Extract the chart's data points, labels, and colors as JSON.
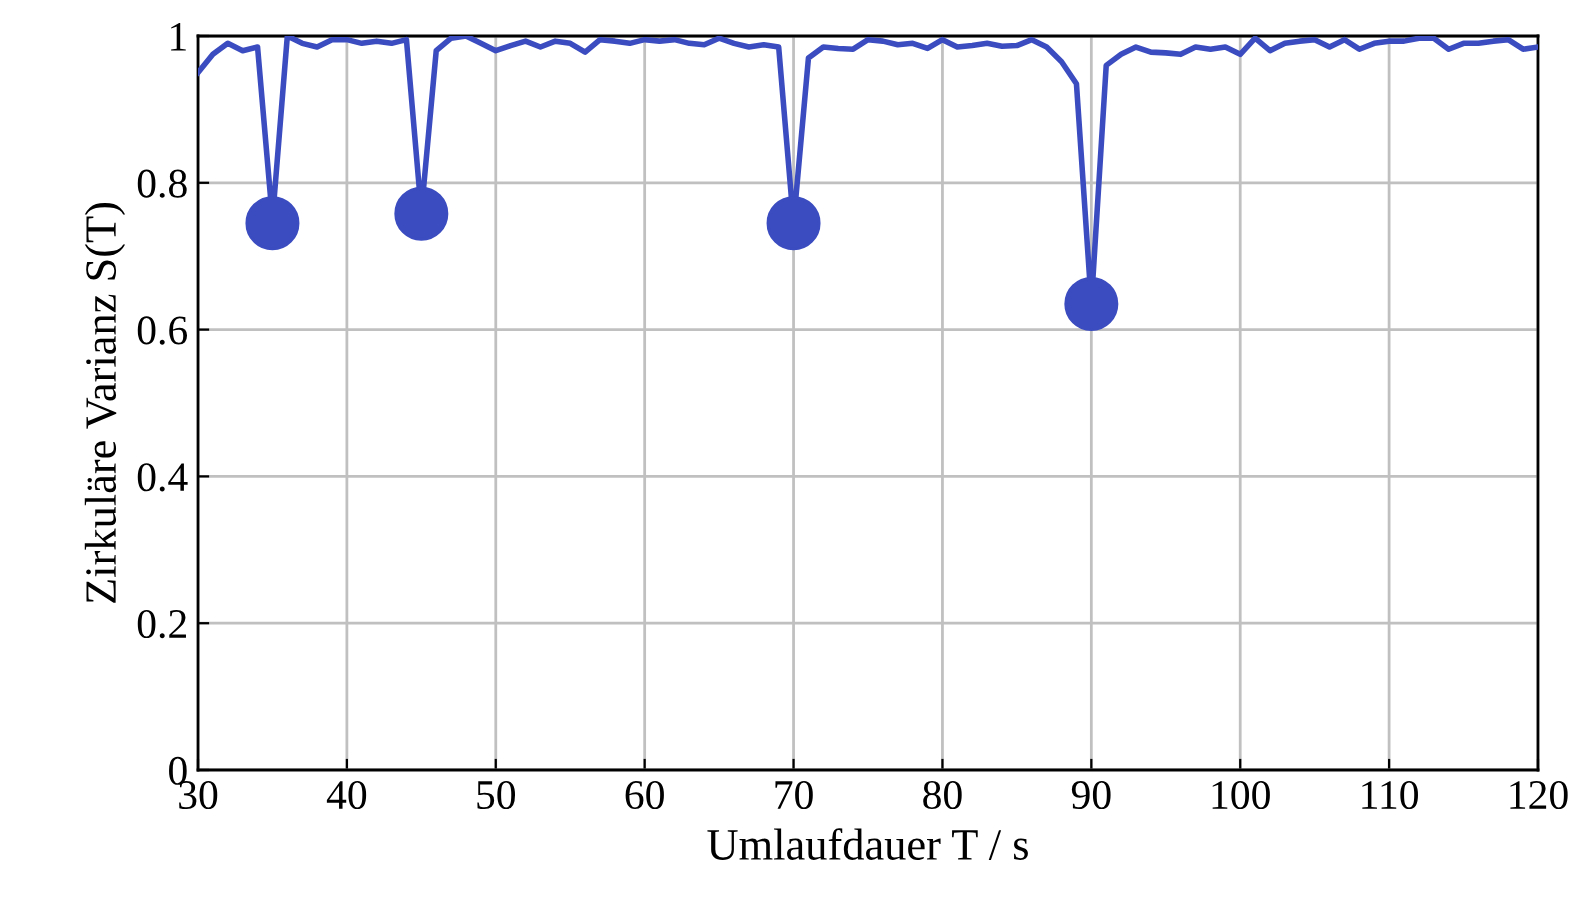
{
  "chart_data": {
    "type": "line",
    "xlabel": "Umlaufdauer T / s",
    "ylabel": "Zirkuläre Varianz S(T)",
    "xlim": [
      30,
      120
    ],
    "xticks": [
      30,
      40,
      50,
      60,
      70,
      80,
      90,
      100,
      110,
      120
    ],
    "ylim": [
      0,
      1
    ],
    "yticks": [
      0,
      0.2,
      0.4,
      0.6,
      0.8,
      1
    ],
    "grid": true,
    "legend": false,
    "series": [
      {
        "color": "#3b4cc0",
        "marker": "none",
        "line_style": "solid",
        "x": [
          30,
          31,
          32,
          33,
          34,
          35,
          36,
          37,
          38,
          39,
          40,
          41,
          42,
          43,
          44,
          45,
          46,
          47,
          48,
          49,
          50,
          51,
          52,
          53,
          54,
          55,
          56,
          57,
          58,
          59,
          60,
          61,
          62,
          63,
          64,
          65,
          66,
          67,
          68,
          69,
          70,
          71,
          72,
          73,
          74,
          75,
          76,
          77,
          78,
          79,
          80,
          81,
          82,
          83,
          84,
          85,
          86,
          87,
          88,
          89,
          90,
          91,
          92,
          93,
          94,
          95,
          96,
          97,
          98,
          99,
          100,
          101,
          102,
          103,
          104,
          105,
          106,
          107,
          108,
          109,
          110,
          111,
          112,
          113,
          114,
          115,
          116,
          117,
          118,
          119,
          120
        ],
        "values": [
          0.95,
          0.975,
          0.99,
          0.98,
          0.985,
          0.75,
          1.0,
          0.99,
          0.985,
          0.995,
          0.995,
          0.99,
          0.993,
          0.99,
          0.995,
          0.76,
          0.98,
          0.997,
          1.0,
          0.99,
          0.98,
          0.987,
          0.993,
          0.985,
          0.993,
          0.99,
          0.978,
          0.995,
          0.993,
          0.99,
          0.995,
          0.993,
          0.995,
          0.99,
          0.988,
          0.997,
          0.99,
          0.985,
          0.988,
          0.985,
          0.745,
          0.97,
          0.985,
          0.983,
          0.982,
          0.995,
          0.993,
          0.988,
          0.99,
          0.983,
          0.995,
          0.985,
          0.987,
          0.99,
          0.986,
          0.987,
          0.995,
          0.985,
          0.965,
          0.935,
          0.635,
          0.96,
          0.975,
          0.985,
          0.978,
          0.977,
          0.975,
          0.985,
          0.982,
          0.985,
          0.975,
          0.997,
          0.98,
          0.99,
          0.993,
          0.995,
          0.985,
          0.995,
          0.982,
          0.99,
          0.993,
          0.993,
          0.997,
          0.997,
          0.982,
          0.99,
          0.99,
          0.993,
          0.995,
          0.982,
          0.985
        ]
      },
      {
        "type": "scatter",
        "color": "#3b4cc0",
        "marker": "circle",
        "x": [
          35,
          45
        ],
        "values": [
          0.745,
          0.758
        ]
      },
      {
        "type": "scatter",
        "color": "#3b4cc0",
        "marker": "circle",
        "x": [
          70,
          90
        ],
        "values": [
          0.745,
          0.635
        ]
      }
    ]
  }
}
